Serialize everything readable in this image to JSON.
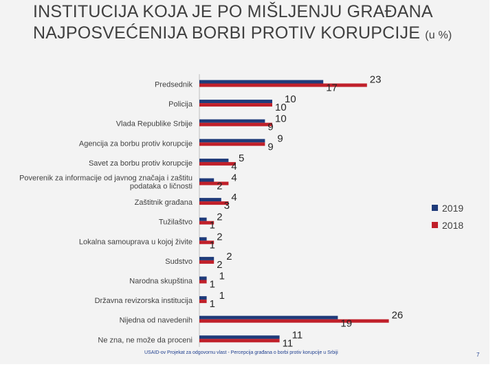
{
  "slide": {
    "title_main": "INSTITUCIJA KOJA JE PO MIŠLJENJU GRAĐANA NAJPOSVEĆENIJA BORBI PROTIV KORUPCIJE",
    "title_unit": "(u %)",
    "footer": "USAID-ov Projekat za odgovornu vlast - Percepcija građana o borbi protiv korupcije u Srbiji",
    "page_number": "7"
  },
  "colors": {
    "s2019": "#1f3b7a",
    "s2018": "#c0202a"
  },
  "chart_data": {
    "type": "bar",
    "orientation": "horizontal",
    "categories": [
      "Predsednik",
      "Policija",
      "Vlada Republike Srbije",
      "Agencija za borbu protiv korupcije",
      "Savet za borbu protiv korupcije",
      [
        "Poverenik za informacije od javnog značaja i zaštitu",
        "podataka o ličnosti"
      ],
      "Zaštitnik građana",
      "Tužilaštvo",
      "Lokalna samouprava u kojoj živite",
      "Sudstvo",
      "Narodna skupština",
      "Državna revizorska institucija",
      "Nijedna od navedenih",
      "Ne zna, ne može da proceni"
    ],
    "series": [
      {
        "name": "2019",
        "values": [
          17,
          10,
          9,
          9,
          4,
          2,
          3,
          1,
          1,
          2,
          1,
          1,
          19,
          11
        ]
      },
      {
        "name": "2018",
        "values": [
          23,
          10,
          10,
          9,
          5,
          4,
          4,
          2,
          2,
          2,
          1,
          1,
          26,
          11
        ]
      }
    ],
    "legend": [
      "2019",
      "2018"
    ],
    "legend_position": "right"
  }
}
